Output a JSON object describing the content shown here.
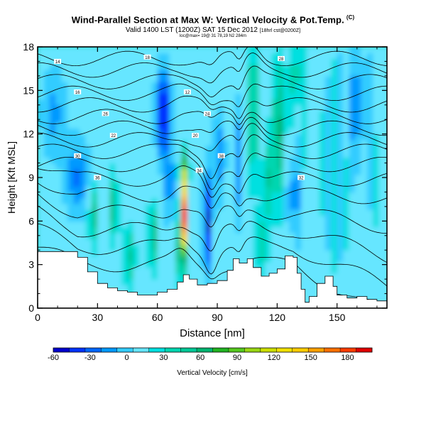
{
  "chart_data": {
    "type": "heatmap",
    "title": "Wind-Parallel Section at Max W: Vertical Velocity & Pot.Temp.",
    "title_mark": "(C)",
    "subtitle": "Valid 1400 LST (1200Z) SAT 15 Dec 2012",
    "subtitle_note": "[18hrl cst@0200Z]",
    "location_line": "loc@max= 19@ 31 78,19 N2 284m",
    "xlabel": "Distance [nm]",
    "ylabel": "Height [Kft MSL]",
    "xlim": [
      0,
      175
    ],
    "ylim": [
      0,
      18
    ],
    "xticks": [
      0,
      30,
      60,
      90,
      120,
      150
    ],
    "yticks": [
      0,
      3,
      6,
      9,
      12,
      15,
      18
    ],
    "colorbar": {
      "label": "Vertical Velocity [cm/s]",
      "min": -60,
      "max": 200,
      "ticks": [
        -60,
        -30,
        0,
        30,
        60,
        90,
        120,
        150,
        180
      ],
      "colors": [
        "#0000cc",
        "#0033ff",
        "#0066ff",
        "#0099ff",
        "#33ccff",
        "#66e6ff",
        "#00e0e0",
        "#00d6b0",
        "#00c896",
        "#00b470",
        "#22b422",
        "#55c81e",
        "#99d714",
        "#ccdf00",
        "#f0e000",
        "#ffcc00",
        "#ffa000",
        "#ff7000",
        "#ff3c00",
        "#e00000"
      ]
    },
    "terrain_profile": [
      [
        0,
        3.9
      ],
      [
        12,
        3.9
      ],
      [
        20,
        3.5
      ],
      [
        25,
        2.5
      ],
      [
        30,
        1.7
      ],
      [
        35,
        1.4
      ],
      [
        40,
        1.2
      ],
      [
        45,
        1.1
      ],
      [
        50,
        0.9
      ],
      [
        55,
        0.9
      ],
      [
        60,
        1.1
      ],
      [
        65,
        1.3
      ],
      [
        70,
        1.8
      ],
      [
        73,
        2.3
      ],
      [
        76,
        2.0
      ],
      [
        80,
        1.6
      ],
      [
        85,
        1.7
      ],
      [
        90,
        1.9
      ],
      [
        95,
        2.6
      ],
      [
        98,
        3.4
      ],
      [
        101,
        3.1
      ],
      [
        105,
        3.4
      ],
      [
        108,
        2.8
      ],
      [
        112,
        2.2
      ],
      [
        116,
        2.4
      ],
      [
        120,
        2.7
      ],
      [
        124,
        3.6
      ],
      [
        128,
        3.5
      ],
      [
        130,
        2.4
      ],
      [
        132,
        1.3
      ],
      [
        134,
        0.4
      ],
      [
        136,
        0.8
      ],
      [
        140,
        1.7
      ],
      [
        144,
        2.2
      ],
      [
        148,
        1.5
      ],
      [
        150,
        0.9
      ],
      [
        155,
        0.7
      ],
      [
        160,
        0.8
      ],
      [
        165,
        0.6
      ],
      [
        170,
        0.5
      ],
      [
        175,
        0.6
      ]
    ],
    "velocity_features": [
      {
        "name": "main updraft core",
        "x": 73.5,
        "y": 6.5,
        "peak_cm_s": 170
      },
      {
        "name": "lower updraft",
        "x": 57.5,
        "y": 5.0,
        "peak_cm_s": 70
      },
      {
        "name": "updraft band",
        "x": 108,
        "y": 13.5,
        "peak_cm_s": 60
      },
      {
        "name": "updraft band",
        "x": 121,
        "y": 12.5,
        "peak_cm_s": 55
      },
      {
        "name": "downdraft",
        "x": 63,
        "y": 13.5,
        "peak_cm_s": -55
      },
      {
        "name": "downdraft",
        "x": 85,
        "y": 6.0,
        "peak_cm_s": -55
      },
      {
        "name": "downdraft",
        "x": 20,
        "y": 9.0,
        "peak_cm_s": -25
      }
    ],
    "isentrope_labels": [
      "18",
      "14",
      "28",
      "16",
      "12",
      "26",
      "24",
      "22",
      "20",
      "30",
      "38",
      "36",
      "34",
      "32"
    ]
  }
}
